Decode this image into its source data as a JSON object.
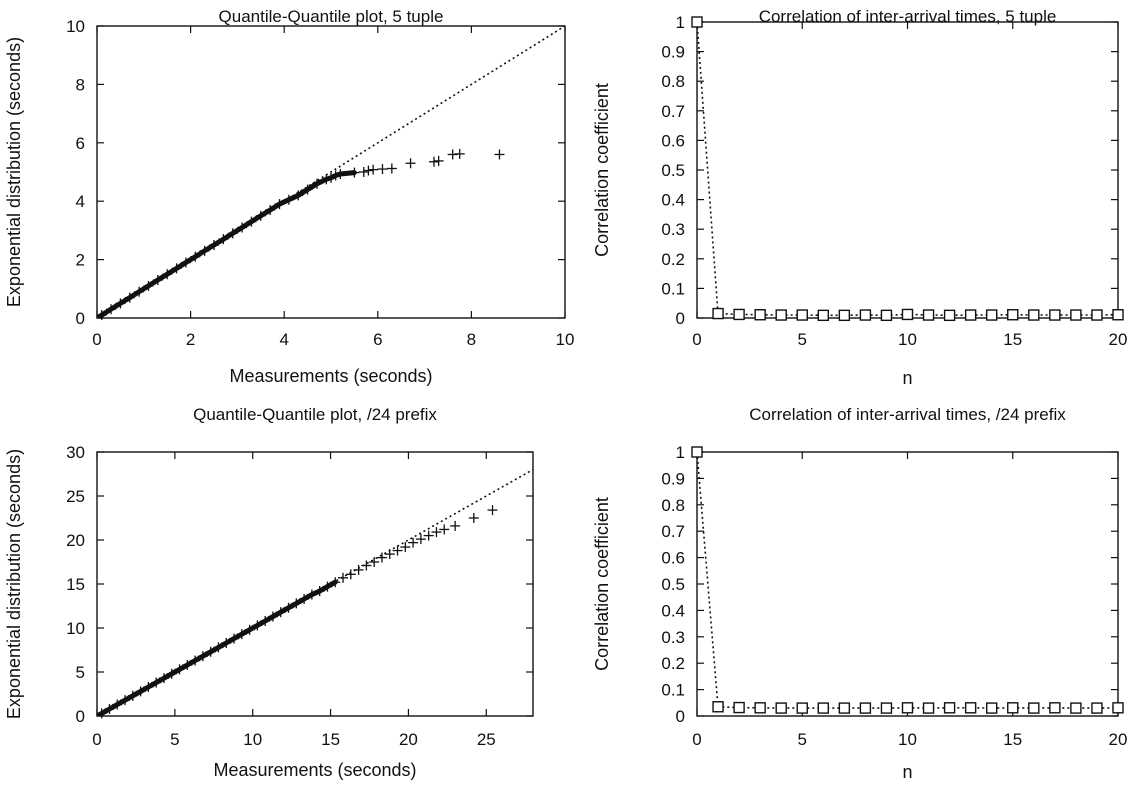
{
  "chart_data": [
    {
      "type": "scatter",
      "title": "Quantile-Quantile plot, 5 tuple",
      "xlabel": "Measurements (seconds)",
      "ylabel": "Exponential distribution (seconds)",
      "xlim": [
        0,
        10
      ],
      "ylim": [
        0,
        10
      ],
      "xticks": [
        0,
        2,
        4,
        6,
        8,
        10
      ],
      "yticks": [
        0,
        2,
        4,
        6,
        8,
        10
      ],
      "reference_line": [
        [
          0,
          0
        ],
        [
          10,
          10
        ]
      ],
      "series": [
        {
          "marker": "plus",
          "points": [
            [
              0.1,
              0.1
            ],
            [
              0.3,
              0.3
            ],
            [
              0.5,
              0.5
            ],
            [
              0.7,
              0.7
            ],
            [
              0.9,
              0.9
            ],
            [
              1.1,
              1.1
            ],
            [
              1.3,
              1.3
            ],
            [
              1.5,
              1.5
            ],
            [
              1.7,
              1.7
            ],
            [
              1.9,
              1.9
            ],
            [
              2.1,
              2.1
            ],
            [
              2.3,
              2.3
            ],
            [
              2.5,
              2.5
            ],
            [
              2.7,
              2.7
            ],
            [
              2.9,
              2.9
            ],
            [
              3.1,
              3.1
            ],
            [
              3.3,
              3.3
            ],
            [
              3.5,
              3.5
            ],
            [
              3.7,
              3.7
            ],
            [
              3.9,
              3.9
            ],
            [
              4.1,
              4.05
            ],
            [
              4.3,
              4.2
            ],
            [
              4.5,
              4.4
            ],
            [
              4.7,
              4.6
            ],
            [
              4.9,
              4.75
            ],
            [
              5.0,
              4.8
            ],
            [
              5.1,
              4.88
            ],
            [
              5.2,
              4.93
            ],
            [
              5.5,
              4.98
            ],
            [
              5.7,
              5.0
            ],
            [
              5.8,
              5.05
            ],
            [
              5.9,
              5.08
            ],
            [
              6.1,
              5.1
            ],
            [
              6.3,
              5.12
            ],
            [
              6.7,
              5.3
            ],
            [
              7.2,
              5.35
            ],
            [
              7.3,
              5.38
            ],
            [
              7.6,
              5.6
            ],
            [
              7.75,
              5.62
            ],
            [
              8.6,
              5.6
            ]
          ]
        }
      ]
    },
    {
      "type": "line",
      "title": "Correlation of inter-arrival times, 5 tuple",
      "xlabel": "n",
      "ylabel": "Correlation coefficient",
      "xlim": [
        0,
        20
      ],
      "ylim": [
        0,
        1
      ],
      "xticks": [
        0,
        5,
        10,
        15,
        20
      ],
      "yticks": [
        0,
        0.1,
        0.2,
        0.3,
        0.4,
        0.5,
        0.6,
        0.7,
        0.8,
        0.9,
        1
      ],
      "series": [
        {
          "marker": "square",
          "line": "dotted",
          "x": [
            0,
            1,
            2,
            3,
            4,
            5,
            6,
            7,
            8,
            9,
            10,
            11,
            12,
            13,
            14,
            15,
            16,
            17,
            18,
            19,
            20
          ],
          "values": [
            1,
            0.015,
            0.012,
            0.011,
            0.01,
            0.01,
            0.009,
            0.009,
            0.01,
            0.009,
            0.012,
            0.01,
            0.009,
            0.01,
            0.01,
            0.011,
            0.01,
            0.01,
            0.01,
            0.01,
            0.011
          ]
        }
      ]
    },
    {
      "type": "scatter",
      "title": "Quantile-Quantile plot, /24 prefix",
      "xlabel": "Measurements (seconds)",
      "ylabel": "Exponential distribution (seconds)",
      "xlim": [
        0,
        28
      ],
      "ylim": [
        0,
        30
      ],
      "xticks": [
        0,
        5,
        10,
        15,
        20,
        25
      ],
      "yticks": [
        0,
        5,
        10,
        15,
        20,
        25,
        30
      ],
      "reference_line": [
        [
          0,
          0
        ],
        [
          28,
          28
        ]
      ],
      "series": [
        {
          "marker": "plus",
          "points": [
            [
              0.3,
              0.3
            ],
            [
              0.8,
              0.8
            ],
            [
              1.3,
              1.3
            ],
            [
              1.8,
              1.8
            ],
            [
              2.3,
              2.3
            ],
            [
              2.8,
              2.8
            ],
            [
              3.3,
              3.3
            ],
            [
              3.8,
              3.8
            ],
            [
              4.3,
              4.3
            ],
            [
              4.8,
              4.8
            ],
            [
              5.3,
              5.3
            ],
            [
              5.8,
              5.8
            ],
            [
              6.3,
              6.3
            ],
            [
              6.8,
              6.8
            ],
            [
              7.3,
              7.3
            ],
            [
              7.8,
              7.8
            ],
            [
              8.3,
              8.3
            ],
            [
              8.8,
              8.8
            ],
            [
              9.3,
              9.3
            ],
            [
              9.8,
              9.8
            ],
            [
              10.3,
              10.3
            ],
            [
              10.8,
              10.8
            ],
            [
              11.3,
              11.3
            ],
            [
              11.8,
              11.8
            ],
            [
              12.3,
              12.3
            ],
            [
              12.8,
              12.8
            ],
            [
              13.3,
              13.3
            ],
            [
              13.8,
              13.8
            ],
            [
              14.3,
              14.2
            ],
            [
              14.8,
              14.7
            ],
            [
              15.3,
              15.2
            ],
            [
              15.8,
              15.7
            ],
            [
              16.3,
              16.1
            ],
            [
              16.8,
              16.6
            ],
            [
              17.3,
              17.1
            ],
            [
              17.8,
              17.5
            ],
            [
              18.3,
              18.0
            ],
            [
              18.8,
              18.4
            ],
            [
              19.3,
              18.8
            ],
            [
              19.8,
              19.2
            ],
            [
              20.3,
              19.7
            ],
            [
              20.8,
              20.1
            ],
            [
              21.3,
              20.5
            ],
            [
              21.8,
              20.9
            ],
            [
              22.3,
              21.2
            ],
            [
              23.0,
              21.6
            ],
            [
              24.2,
              22.5
            ],
            [
              25.4,
              23.4
            ]
          ]
        }
      ]
    },
    {
      "type": "line",
      "title": "Correlation of inter-arrival times, /24 prefix",
      "xlabel": "n",
      "ylabel": "Correlation coefficient",
      "xlim": [
        0,
        20
      ],
      "ylim": [
        0,
        1
      ],
      "xticks": [
        0,
        5,
        10,
        15,
        20
      ],
      "yticks": [
        0,
        0.1,
        0.2,
        0.3,
        0.4,
        0.5,
        0.6,
        0.7,
        0.8,
        0.9,
        1
      ],
      "series": [
        {
          "marker": "square",
          "line": "dotted",
          "x": [
            0,
            1,
            2,
            3,
            4,
            5,
            6,
            7,
            8,
            9,
            10,
            11,
            12,
            13,
            14,
            15,
            16,
            17,
            18,
            19,
            20
          ],
          "values": [
            1,
            0.035,
            0.032,
            0.031,
            0.03,
            0.03,
            0.03,
            0.03,
            0.03,
            0.03,
            0.031,
            0.03,
            0.031,
            0.031,
            0.03,
            0.031,
            0.03,
            0.031,
            0.03,
            0.03,
            0.031
          ]
        }
      ]
    }
  ]
}
